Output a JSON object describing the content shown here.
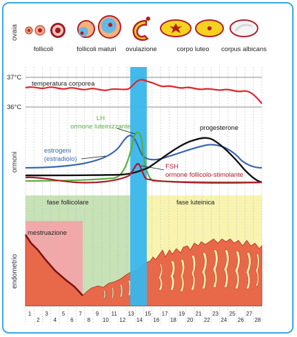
{
  "section_labels": {
    "ovaries": "ovaia",
    "hormones": "ormoni",
    "endometrium": "endometrio"
  },
  "ovary_stages": [
    {
      "label": "follicoli"
    },
    {
      "label": "follicoli maturi"
    },
    {
      "label": "ovulazione"
    },
    {
      "label": "corpo luteo"
    },
    {
      "label": "corpus albicans"
    }
  ],
  "temperature": {
    "title": "temperatura corporea",
    "tick_high": "37°C",
    "tick_low": "36°C"
  },
  "hormones": {
    "lh_line1": "LH",
    "lh_line2": "ormone luteinizzante",
    "estrogen_line1": "estrogeni",
    "estrogen_line2": "(estradiolo)",
    "progesterone": "progesterone",
    "fsh_line1": "FSH",
    "fsh_line2": "ormone follicolo-stimolante"
  },
  "phases": {
    "follicular": "fase follicolare",
    "luteal": "fase luteinica",
    "menstruation": "mestruazione"
  },
  "days": [
    "1",
    "2",
    "3",
    "4",
    "5",
    "6",
    "7",
    "8",
    "9",
    "10",
    "11",
    "12",
    "13",
    "14",
    "15",
    "16",
    "17",
    "18",
    "19",
    "20",
    "21",
    "22",
    "23",
    "24",
    "25",
    "26",
    "27",
    "28"
  ],
  "colors": {
    "temperature": "#e0242a",
    "lh": "#5aaf3a",
    "estrogen": "#3a67b0",
    "progesterone": "#111111",
    "fsh": "#b0182a",
    "ovulation_band": "#38b6ea",
    "follicular": "#c6e2b6",
    "luteal": "#f8f4b0",
    "menstruation": "#f2a8a8",
    "endometrium": "#e8684a",
    "corpus_luteum": "#f5d21e",
    "frame": "#38a8dc"
  }
}
